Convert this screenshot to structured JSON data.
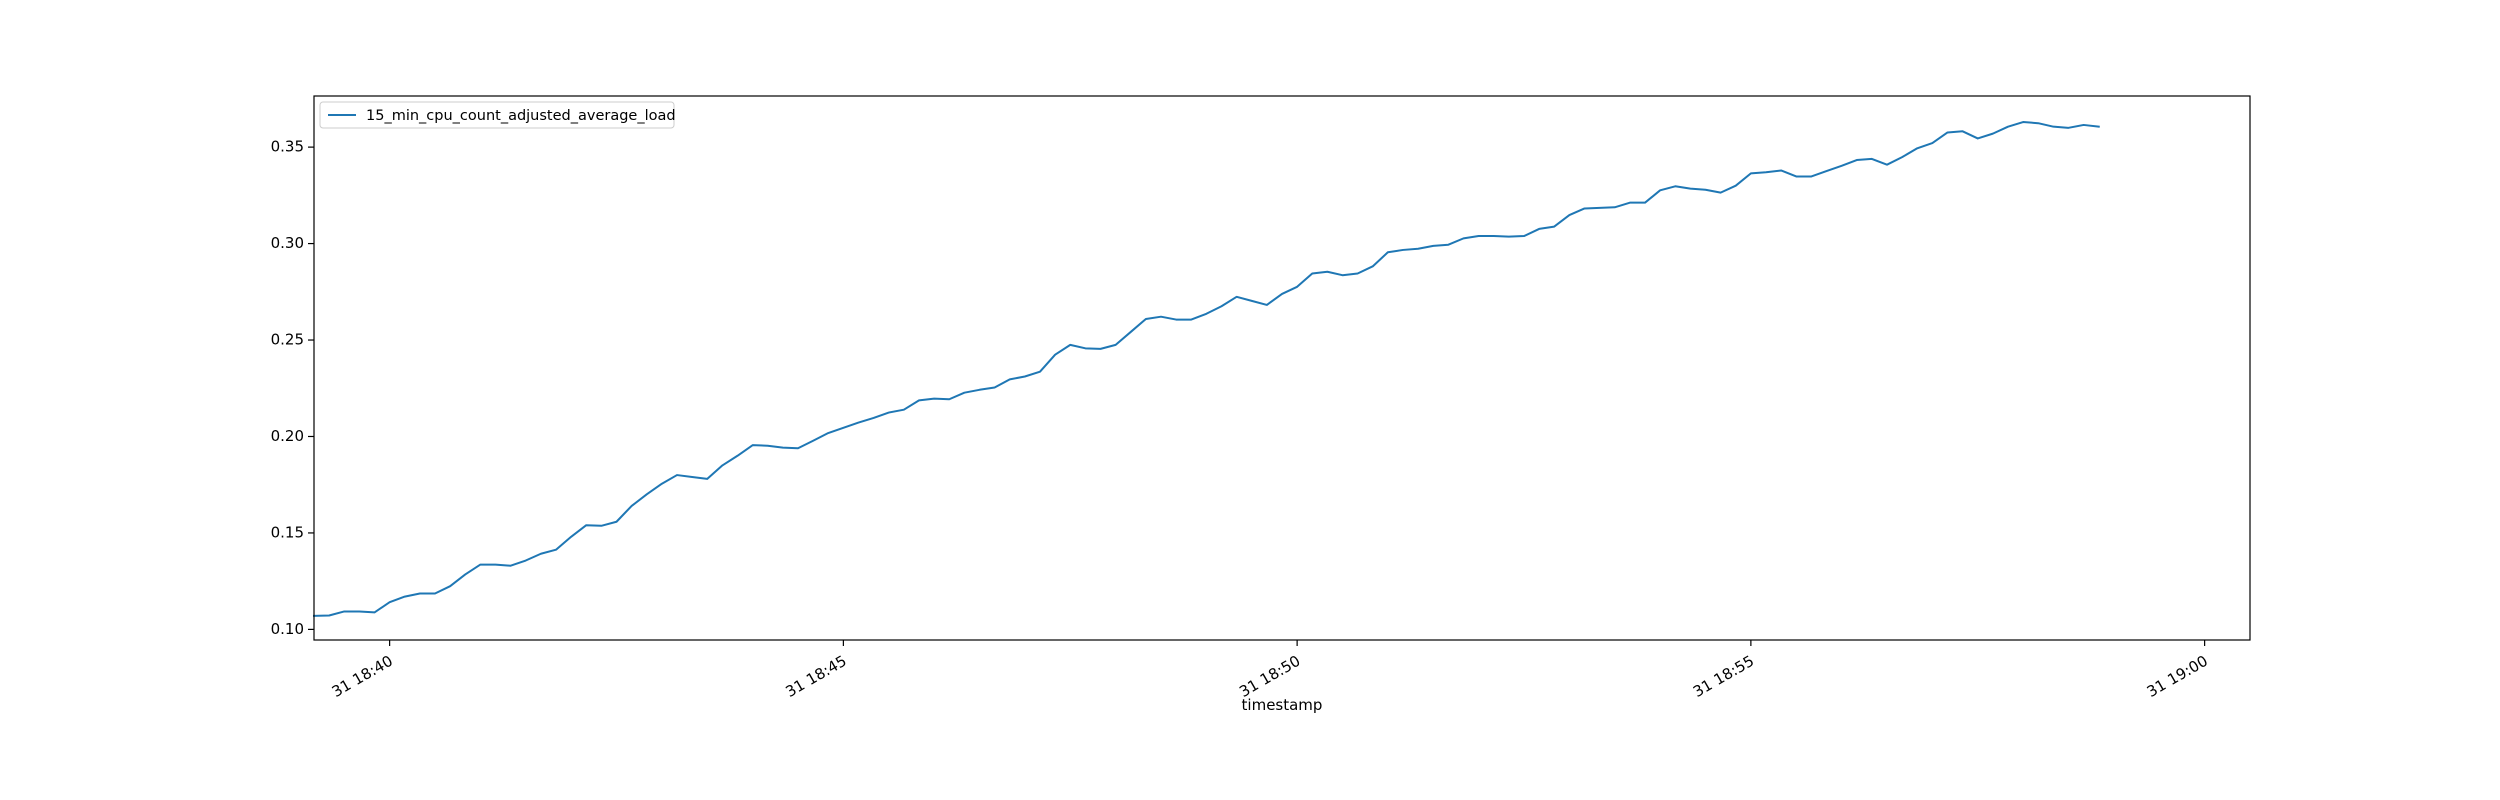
{
  "chart_data": {
    "type": "line",
    "title": "",
    "xlabel": "timestamp",
    "ylabel": "",
    "x_start": "2000-01-31 18:39:10",
    "x_interval_seconds": 10,
    "xlim": [
      "2000-01-31 18:39:10",
      "2000-01-31 19:00:30"
    ],
    "ylim": [
      0.0945,
      0.3765
    ],
    "x_ticks": [
      {
        "value": "2000-01-31 18:40:00",
        "label": "31 18:40"
      },
      {
        "value": "2000-01-31 18:45:00",
        "label": "31 18:45"
      },
      {
        "value": "2000-01-31 18:50:00",
        "label": "31 18:50"
      },
      {
        "value": "2000-01-31 18:55:00",
        "label": "31 18:55"
      },
      {
        "value": "2000-01-31 19:00:00",
        "label": "31 19:00"
      }
    ],
    "y_ticks": [
      {
        "value": 0.1,
        "label": "0.10"
      },
      {
        "value": 0.15,
        "label": "0.15"
      },
      {
        "value": 0.2,
        "label": "0.20"
      },
      {
        "value": 0.25,
        "label": "0.25"
      },
      {
        "value": 0.3,
        "label": "0.30"
      },
      {
        "value": 0.35,
        "label": "0.35"
      }
    ],
    "grid": false,
    "legend_position": "top-left",
    "series": [
      {
        "name": "15_min_cpu_count_adjusted_average_load",
        "color": "#1f77b4",
        "values": [
          0.107,
          0.1072,
          0.1093,
          0.1093,
          0.1088,
          0.1141,
          0.117,
          0.1186,
          0.1186,
          0.1224,
          0.1285,
          0.1336,
          0.1336,
          0.133,
          0.1357,
          0.1392,
          0.1413,
          0.148,
          0.154,
          0.1537,
          0.1558,
          0.164,
          0.17,
          0.1755,
          0.18,
          0.179,
          0.178,
          0.185,
          0.19,
          0.1955,
          0.1952,
          0.1942,
          0.1939,
          0.1978,
          0.2018,
          0.2045,
          0.2072,
          0.2096,
          0.2124,
          0.2139,
          0.2187,
          0.2196,
          0.2193,
          0.2227,
          0.2242,
          0.2254,
          0.2296,
          0.2311,
          0.2336,
          0.2424,
          0.2475,
          0.2457,
          0.2454,
          0.2475,
          0.2542,
          0.2609,
          0.2621,
          0.2606,
          0.2606,
          0.2636,
          0.2675,
          0.2724,
          0.2703,
          0.2682,
          0.2739,
          0.2776,
          0.2845,
          0.2854,
          0.2836,
          0.2845,
          0.2882,
          0.2955,
          0.2967,
          0.2973,
          0.2988,
          0.2994,
          0.3027,
          0.3039,
          0.3039,
          0.3036,
          0.3039,
          0.3076,
          0.3088,
          0.3148,
          0.3182,
          0.3185,
          0.3188,
          0.3212,
          0.3212,
          0.3276,
          0.3297,
          0.3285,
          0.3279,
          0.3264,
          0.33,
          0.3364,
          0.337,
          0.3379,
          0.3348,
          0.3348,
          0.3376,
          0.3403,
          0.3433,
          0.3439,
          0.3409,
          0.3448,
          0.3494,
          0.3521,
          0.3576,
          0.3582,
          0.3545,
          0.357,
          0.3606,
          0.363,
          0.3624,
          0.3606,
          0.36,
          0.3615,
          0.3606
        ]
      }
    ]
  }
}
